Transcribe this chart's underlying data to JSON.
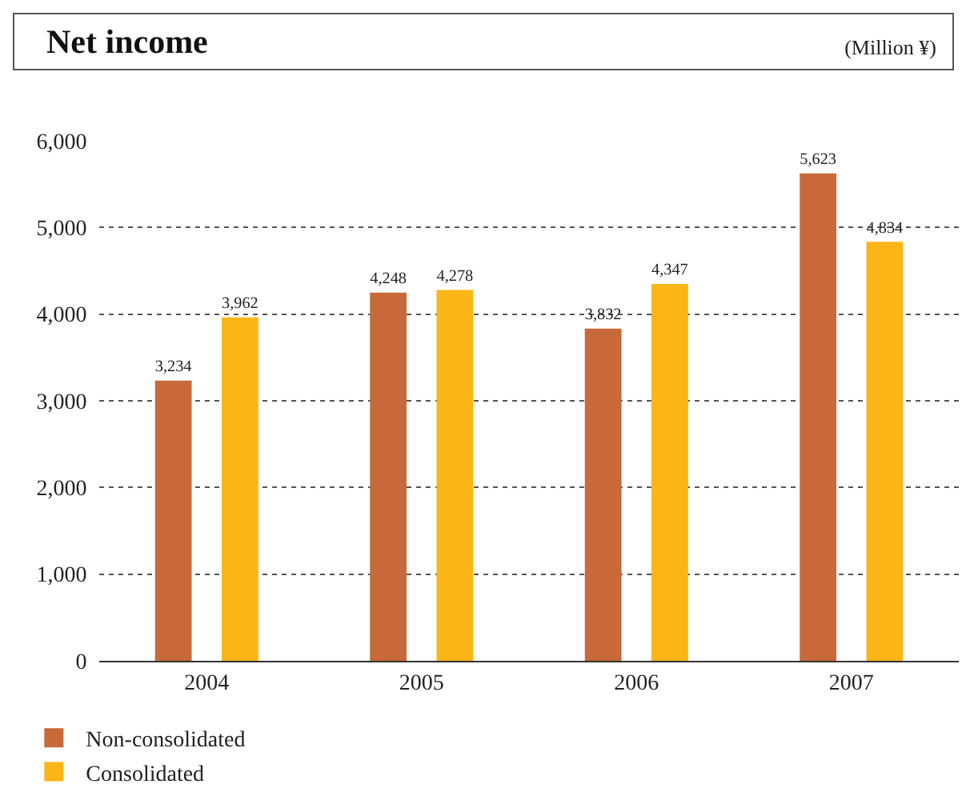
{
  "chart_data": {
    "type": "bar",
    "title": "Net income",
    "annotations": [
      "(Million ¥)"
    ],
    "categories": [
      "2004",
      "2005",
      "2006",
      "2007"
    ],
    "series": [
      {
        "name": "Non-consolidated",
        "color": "#c8693a",
        "values": [
          3234,
          4248,
          3832,
          5623
        ],
        "value_labels": [
          "3,234",
          "4,248",
          "3,832",
          "5,623"
        ]
      },
      {
        "name": "Consolidated",
        "color": "#fbb516",
        "values": [
          3962,
          4278,
          4347,
          4834
        ],
        "value_labels": [
          "3,962",
          "4,278",
          "4,347",
          "4,834"
        ]
      }
    ],
    "ylim": [
      0,
      6000
    ],
    "yticks": [
      0,
      {
        "value": 1000,
        "label": "1,000"
      },
      {
        "value": 2000,
        "label": "2,000"
      },
      {
        "value": 3000,
        "label": "3,000"
      },
      {
        "value": 4000,
        "label": "4,000"
      },
      {
        "value": 5000,
        "label": "5,000"
      },
      {
        "value": 6000,
        "label": "6,000"
      }
    ],
    "grid": "y",
    "legend": "bottom left"
  }
}
